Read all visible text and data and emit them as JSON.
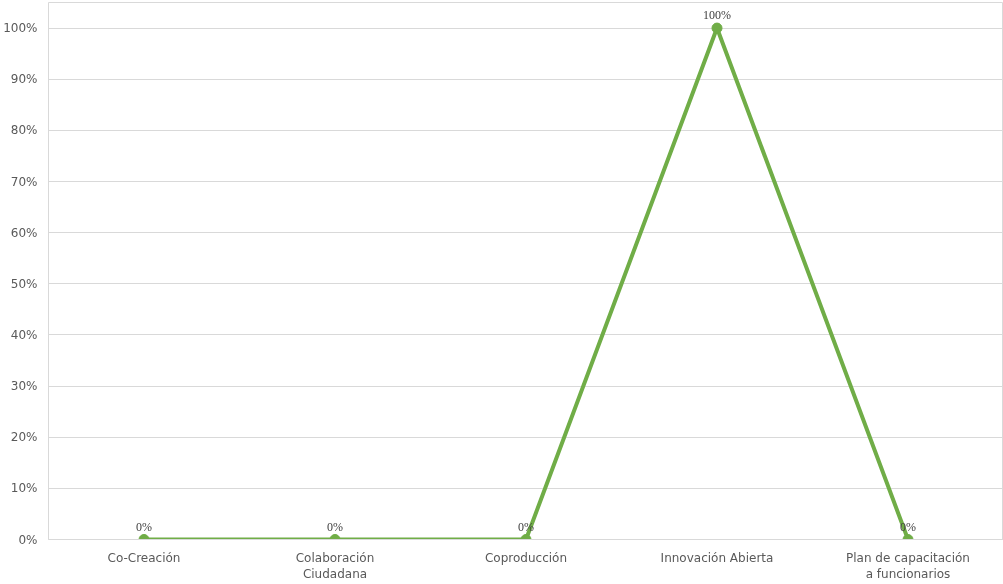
{
  "chart_data": {
    "type": "line",
    "categories": [
      "Co-Creación",
      "Colaboración Ciudadana",
      "Coproducción",
      "Innovación Abierta",
      "Plan de capacitación a funcionarios"
    ],
    "series": [
      {
        "color": "#70ad47",
        "values": [
          0,
          0,
          0,
          100,
          0
        ]
      }
    ],
    "ylim": [
      0,
      105
    ],
    "yticks": [
      {
        "value": 0,
        "label": "0%"
      },
      {
        "value": 10,
        "label": "10%"
      },
      {
        "value": 20,
        "label": "20%"
      },
      {
        "value": 30,
        "label": "30%"
      },
      {
        "value": 40,
        "label": "40%"
      },
      {
        "value": 50,
        "label": "50%"
      },
      {
        "value": 60,
        "label": "60%"
      },
      {
        "value": 70,
        "label": "70%"
      },
      {
        "value": 80,
        "label": "80%"
      },
      {
        "value": 90,
        "label": "90%"
      },
      {
        "value": 100,
        "label": "100%"
      }
    ],
    "value_labels": [
      "0%",
      "0%",
      "0%",
      "100%",
      "0%"
    ],
    "grid": "y",
    "marker": "circle",
    "line_style": "solid"
  }
}
